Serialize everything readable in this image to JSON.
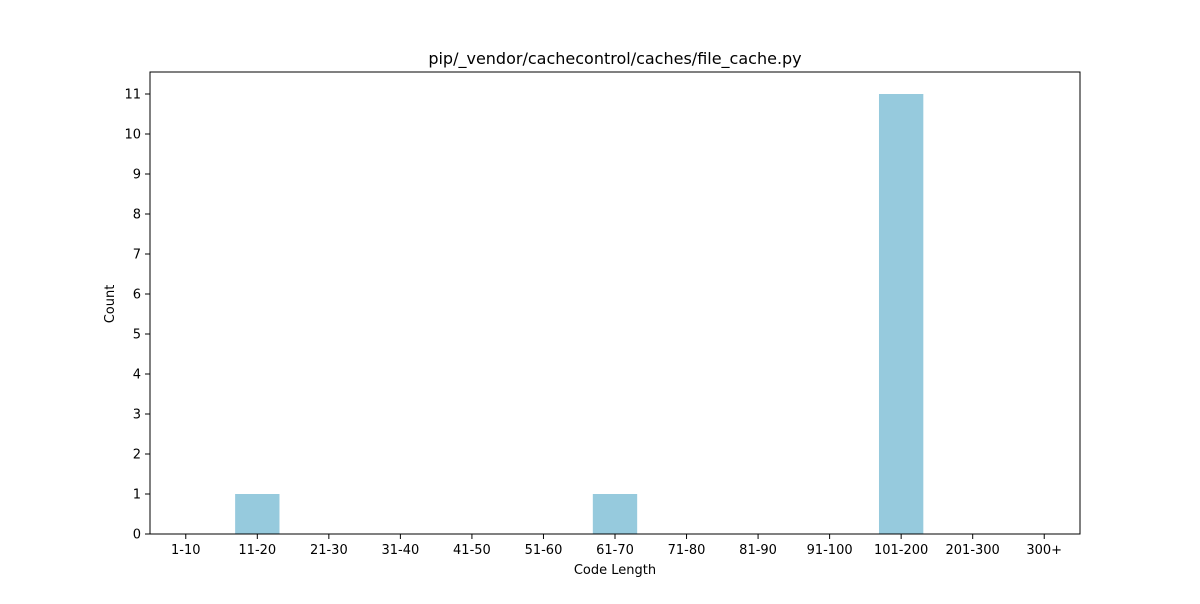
{
  "chart_data": {
    "type": "bar",
    "title": "pip/_vendor/cachecontrol/caches/file_cache.py",
    "xlabel": "Code Length",
    "ylabel": "Count",
    "categories": [
      "1-10",
      "11-20",
      "21-30",
      "31-40",
      "41-50",
      "51-60",
      "61-70",
      "71-80",
      "81-90",
      "91-100",
      "101-200",
      "201-300",
      "300+"
    ],
    "values": [
      0,
      1,
      0,
      0,
      0,
      0,
      1,
      0,
      0,
      0,
      11,
      0,
      0
    ],
    "ylim": [
      0,
      11.55
    ],
    "yticks": [
      0,
      1,
      2,
      3,
      4,
      5,
      6,
      7,
      8,
      9,
      10,
      11
    ],
    "grid": false,
    "legend": "none",
    "bar_color": "#96cadd",
    "axis_color": "#000000"
  }
}
